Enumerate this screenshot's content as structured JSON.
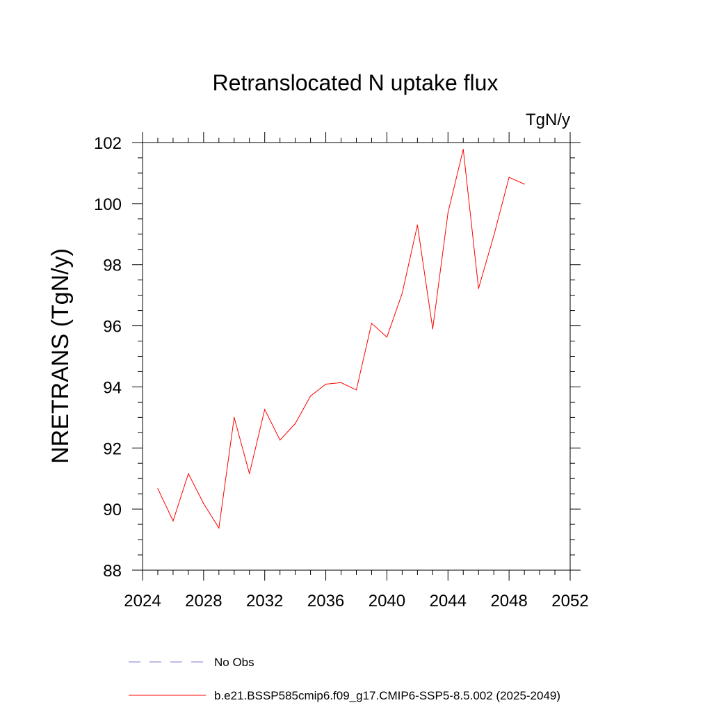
{
  "chart_data": {
    "type": "line",
    "title": "Retranslocated N uptake flux",
    "units_label": "TgN/y",
    "xlabel": "",
    "ylabel": "NRETRANS  (TgN/y)",
    "xlim": [
      2024,
      2052
    ],
    "ylim": [
      88,
      102
    ],
    "x_ticks": [
      2024,
      2028,
      2032,
      2036,
      2040,
      2044,
      2048,
      2052
    ],
    "y_ticks": [
      88,
      90,
      92,
      94,
      96,
      98,
      100,
      102
    ],
    "grid": false,
    "series": [
      {
        "name": "b.e21.BSSP585cmip6.f09_g17.CMIP6-SSP5-8.5.002 (2025-2049)",
        "color": "#ff0000",
        "style": "solid",
        "x": [
          2025,
          2026,
          2027,
          2028,
          2029,
          2030,
          2031,
          2032,
          2033,
          2034,
          2035,
          2036,
          2037,
          2038,
          2039,
          2040,
          2041,
          2042,
          2043,
          2044,
          2045,
          2046,
          2047,
          2048,
          2049
        ],
        "values": [
          90.67,
          89.61,
          91.16,
          90.18,
          89.38,
          93.0,
          91.16,
          93.26,
          92.26,
          92.8,
          93.7,
          94.09,
          94.14,
          93.9,
          96.08,
          95.63,
          97.06,
          99.3,
          95.9,
          99.7,
          101.78,
          97.22,
          98.95,
          100.86,
          100.64
        ]
      }
    ],
    "legend": [
      {
        "label": "No Obs",
        "color": "#7b7bd6",
        "style": "dashed"
      },
      {
        "label": "b.e21.BSSP585cmip6.f09_g17.CMIP6-SSP5-8.5.002 (2025-2049)",
        "color": "#ff0000",
        "style": "solid"
      }
    ],
    "legend_position": "bottom"
  }
}
